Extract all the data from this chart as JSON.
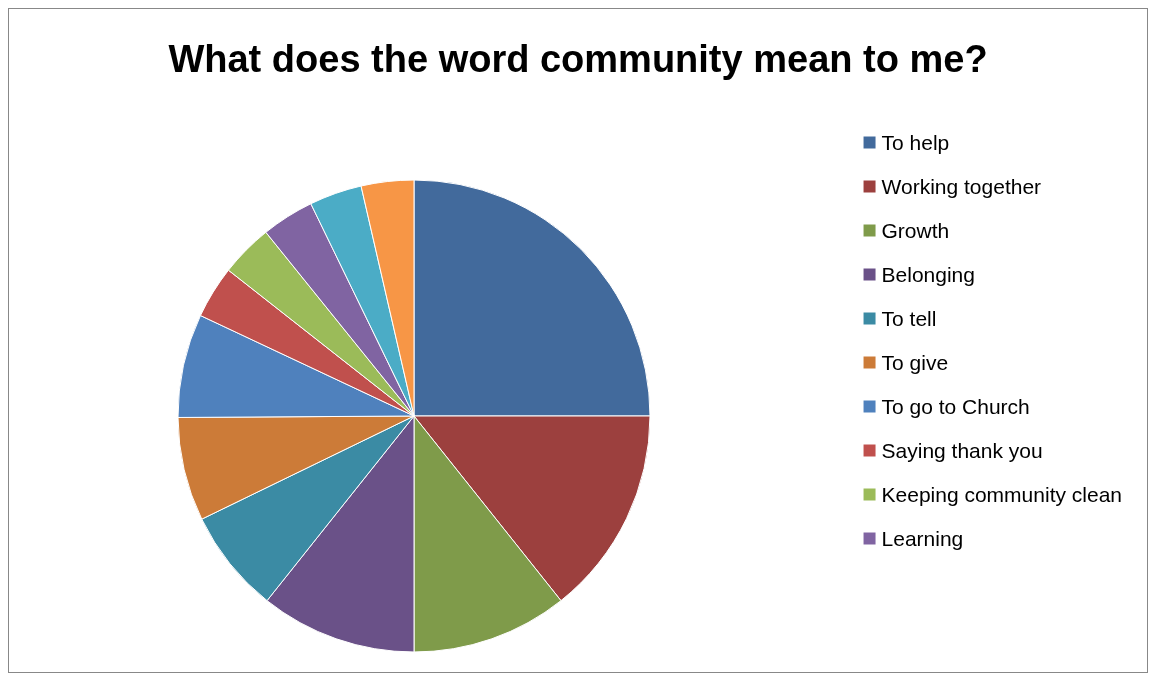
{
  "chart_data": {
    "type": "pie",
    "title": "What does the word community mean to me?",
    "categories": [
      "To help",
      "Working together",
      "Growth",
      "Belonging",
      "To tell",
      "To give",
      "To go to Church",
      "Saying thank you",
      "Keeping community clean",
      "Learning",
      null,
      null
    ],
    "values": [
      25,
      14.3,
      10.7,
      10.7,
      7.1,
      7.1,
      7.1,
      3.6,
      3.6,
      3.6,
      3.6,
      3.6
    ],
    "colors": [
      "#426a9c",
      "#9c403e",
      "#7f9b4a",
      "#6a5188",
      "#3b8ba4",
      "#cc7b38",
      "#4f81bd",
      "#c0504d",
      "#9bbb59",
      "#8064a2",
      "#4bacc6",
      "#f79646"
    ],
    "legend": "right"
  }
}
